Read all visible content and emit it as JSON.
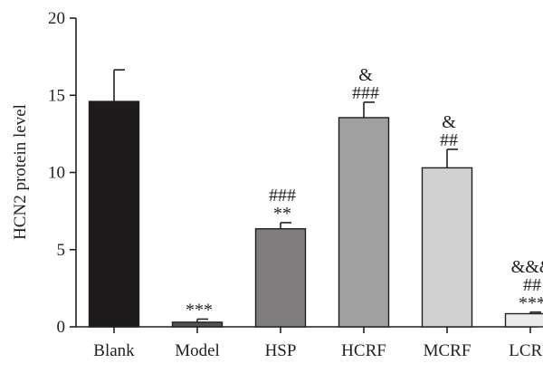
{
  "chart_data": {
    "type": "bar",
    "title": "",
    "xlabel": "",
    "ylabel": "HCN2 protein level",
    "ylim": [
      0,
      20
    ],
    "yticks": [
      "0",
      "5",
      "10",
      "15",
      "20"
    ],
    "grid": false,
    "categories": [
      "Blank",
      "Model",
      "HSP",
      "HCRF",
      "MCRF",
      "LCRF"
    ],
    "values": [
      14.6,
      0.3,
      6.35,
      13.55,
      10.3,
      0.85
    ],
    "errors": [
      2.05,
      0.2,
      0.4,
      1.0,
      1.2,
      0.1
    ],
    "bar_colors": [
      "#1e1b1c",
      "#545253",
      "#7f7d7e",
      "#a1a0a1",
      "#d2d1d2",
      "#ececec"
    ],
    "annotations": [
      [],
      [
        "***"
      ],
      [
        "###",
        "**"
      ],
      [
        "&",
        "###"
      ],
      [
        "&",
        "##"
      ],
      [
        "&&&",
        "##",
        "***"
      ]
    ]
  }
}
